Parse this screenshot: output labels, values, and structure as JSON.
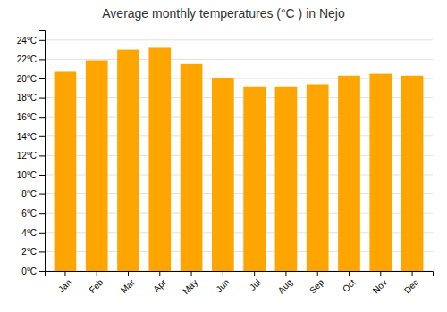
{
  "chart_data": {
    "type": "bar",
    "title": "Average monthly temperatures (°C ) in Nejo",
    "categories": [
      "Jan",
      "Feb",
      "Mar",
      "Apr",
      "May",
      "Jun",
      "Jul",
      "Aug",
      "Sep",
      "Oct",
      "Nov",
      "Dec"
    ],
    "values": [
      20.7,
      21.9,
      23.0,
      23.2,
      21.5,
      20.0,
      19.1,
      19.1,
      19.4,
      20.3,
      20.5,
      20.3
    ],
    "color": "#FFA500",
    "ylim": [
      0,
      25
    ],
    "yticks": [
      {
        "value": 0,
        "label": "0°C"
      },
      {
        "value": 2,
        "label": "2°C"
      },
      {
        "value": 4,
        "label": "4°C"
      },
      {
        "value": 6,
        "label": "6°C"
      },
      {
        "value": 8,
        "label": "8°C"
      },
      {
        "value": 10,
        "label": "10°C"
      },
      {
        "value": 12,
        "label": "12°C"
      },
      {
        "value": 14,
        "label": "14°C"
      },
      {
        "value": 16,
        "label": "16°C"
      },
      {
        "value": 18,
        "label": "18°C"
      },
      {
        "value": 20,
        "label": "20°C"
      },
      {
        "value": 22,
        "label": "22°C"
      },
      {
        "value": 24,
        "label": "24°C"
      }
    ],
    "grid": true
  }
}
